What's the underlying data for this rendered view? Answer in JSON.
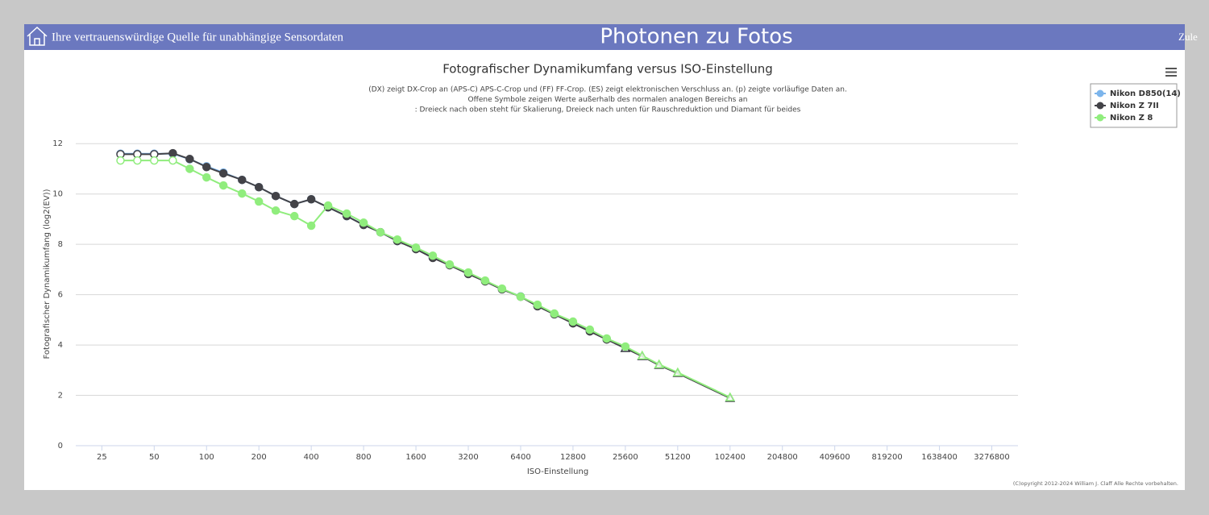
{
  "header": {
    "tagline": "Ihre vertrauenswürdige Quelle für unabhängige Sensordaten",
    "site_title": "Photonen zu Fotos",
    "menu": "Zule"
  },
  "copyright": "(C)opyright 2012-2024 William J. Claff Alle Rechte vorbehalten.",
  "chart_data": {
    "type": "line",
    "title": "Fotografischer Dynamikumfang versus ISO-Einstellung",
    "subtitle": [
      "(DX) zeigt DX-Crop an (APS-C) APS-C-Crop und (FF) FF-Crop. (ES) zeigt elektronischen Verschluss an. (p) zeigte vorläufige Daten an.",
      "Offene Symbole zeigen Werte außerhalb des normalen analogen Bereichs an",
      ": Dreieck nach oben steht für Skalierung, Dreieck nach unten für Rauschreduktion und Diamant für beides"
    ],
    "x_label": "ISO-Einstellung",
    "y_label": "Fotografischer Dynamikumfang (log2(EV))",
    "xscale": "log2",
    "x": [
      32,
      40,
      50,
      64,
      80,
      100,
      125,
      160,
      200,
      250,
      320,
      400,
      500,
      640,
      800,
      1000,
      1250,
      1600,
      2000,
      2500,
      3200,
      4000,
      5000,
      6400,
      8000,
      10000,
      12800,
      16000,
      20000,
      25600,
      32000,
      40000,
      51200,
      102400
    ],
    "xlim": [
      17.7,
      4634000
    ],
    "xticks": [
      25,
      50,
      100,
      200,
      400,
      800,
      1600,
      3200,
      6400,
      12800,
      25600,
      51200,
      102400,
      204800,
      409600,
      819200,
      1638400,
      3276800
    ],
    "ylim": [
      0,
      13
    ],
    "yticks": [
      0,
      2,
      4,
      6,
      8,
      10,
      12
    ],
    "grid": true,
    "legend": "top-right",
    "series": [
      {
        "name": "Nikon D850(14)",
        "color": "#7cb5ec",
        "values": [
          11.6,
          11.6,
          11.6,
          11.6,
          11.38,
          11.1,
          10.85,
          10.56,
          10.27,
          9.92,
          9.6,
          9.79,
          9.47,
          9.12,
          8.78,
          8.48,
          8.13,
          7.82,
          7.47,
          7.18,
          6.83,
          6.54,
          6.22,
          5.93,
          5.55,
          5.23,
          4.87,
          4.55,
          4.23,
          3.88,
          3.56,
          3.21,
          2.89,
          1.9
        ],
        "markers": [
          "open",
          "open",
          "open",
          "circle",
          "circle",
          "circle",
          "circle",
          "circle",
          "circle",
          "circle",
          "circle",
          "circle",
          "circle",
          "circle",
          "circle",
          "circle",
          "circle",
          "circle",
          "circle",
          "circle",
          "circle",
          "circle",
          "circle",
          "circle",
          "circle",
          "circle",
          "circle",
          "circle",
          "circle",
          "triangle",
          "triangle",
          "triangle",
          "triangle",
          "triangle"
        ]
      },
      {
        "name": "Nikon Z 7II",
        "color": "#434348",
        "values": [
          11.58,
          11.58,
          11.58,
          11.62,
          11.39,
          11.07,
          10.82,
          10.56,
          10.27,
          9.92,
          9.6,
          9.79,
          9.47,
          9.12,
          8.77,
          8.48,
          8.13,
          7.81,
          7.46,
          7.17,
          6.82,
          6.53,
          6.21,
          5.92,
          5.54,
          5.22,
          4.86,
          4.54,
          4.22,
          3.87,
          3.55,
          3.2,
          2.88,
          1.89
        ],
        "markers": [
          "open",
          "open",
          "open",
          "circle",
          "circle",
          "circle",
          "circle",
          "circle",
          "circle",
          "circle",
          "circle",
          "circle",
          "circle",
          "circle",
          "circle",
          "circle",
          "circle",
          "circle",
          "circle",
          "circle",
          "circle",
          "circle",
          "circle",
          "circle",
          "circle",
          "circle",
          "circle",
          "circle",
          "circle",
          "triangle",
          "triangle",
          "triangle",
          "triangle",
          "triangle"
        ]
      },
      {
        "name": "Nikon Z 8",
        "color": "#90ed7d",
        "values": [
          11.33,
          11.33,
          11.33,
          11.33,
          11.0,
          10.66,
          10.34,
          10.02,
          9.7,
          9.34,
          9.12,
          8.74,
          9.54,
          9.22,
          8.86,
          8.48,
          8.19,
          7.87,
          7.55,
          7.2,
          6.88,
          6.56,
          6.24,
          5.92,
          5.6,
          5.25,
          4.93,
          4.61,
          4.26,
          3.94,
          3.58,
          3.23,
          2.91,
          1.92
        ],
        "markers": [
          "open",
          "open",
          "open",
          "open",
          "circle",
          "circle",
          "circle",
          "circle",
          "circle",
          "circle",
          "circle",
          "circle",
          "circle",
          "circle",
          "circle",
          "circle",
          "circle",
          "circle",
          "circle",
          "circle",
          "circle",
          "circle",
          "circle",
          "circle",
          "circle",
          "circle",
          "circle",
          "circle",
          "circle",
          "circle",
          "triangle",
          "triangle",
          "triangle",
          "triangle"
        ]
      }
    ]
  }
}
